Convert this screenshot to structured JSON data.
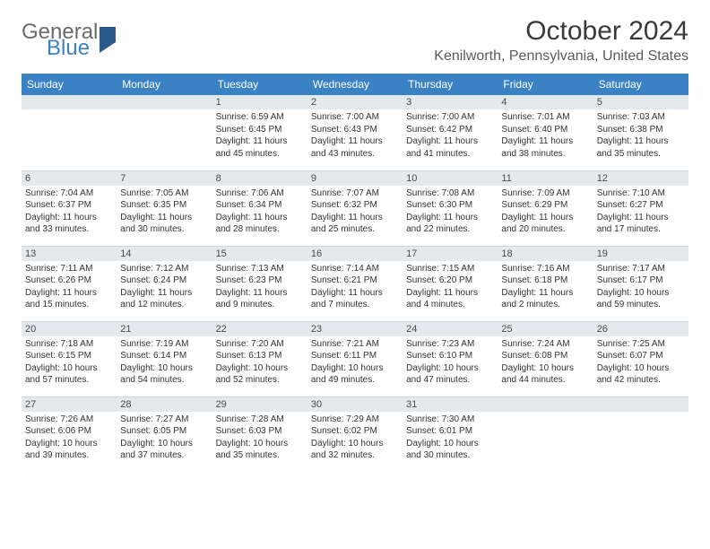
{
  "brand": {
    "word1": "General",
    "word2": "Blue"
  },
  "title": "October 2024",
  "location": "Kenilworth, Pennsylvania, United States",
  "colors": {
    "header_bg": "#3b82c4",
    "header_text": "#ffffff",
    "daynum_bg": "#e4e9ee",
    "border": "#cfd6dd",
    "text": "#333333",
    "brand_gray": "#6b6b6b",
    "brand_blue": "#3b82c4"
  },
  "fonts": {
    "title_size_pt": 30,
    "location_size_pt": 16,
    "header_size_pt": 12,
    "daynum_size_pt": 11,
    "body_size_pt": 10
  },
  "dayHeaders": [
    "Sunday",
    "Monday",
    "Tuesday",
    "Wednesday",
    "Thursday",
    "Friday",
    "Saturday"
  ],
  "weeks": [
    [
      null,
      null,
      {
        "n": "1",
        "sunrise": "6:59 AM",
        "sunset": "6:45 PM",
        "daylight": "11 hours and 45 minutes."
      },
      {
        "n": "2",
        "sunrise": "7:00 AM",
        "sunset": "6:43 PM",
        "daylight": "11 hours and 43 minutes."
      },
      {
        "n": "3",
        "sunrise": "7:00 AM",
        "sunset": "6:42 PM",
        "daylight": "11 hours and 41 minutes."
      },
      {
        "n": "4",
        "sunrise": "7:01 AM",
        "sunset": "6:40 PM",
        "daylight": "11 hours and 38 minutes."
      },
      {
        "n": "5",
        "sunrise": "7:03 AM",
        "sunset": "6:38 PM",
        "daylight": "11 hours and 35 minutes."
      }
    ],
    [
      {
        "n": "6",
        "sunrise": "7:04 AM",
        "sunset": "6:37 PM",
        "daylight": "11 hours and 33 minutes."
      },
      {
        "n": "7",
        "sunrise": "7:05 AM",
        "sunset": "6:35 PM",
        "daylight": "11 hours and 30 minutes."
      },
      {
        "n": "8",
        "sunrise": "7:06 AM",
        "sunset": "6:34 PM",
        "daylight": "11 hours and 28 minutes."
      },
      {
        "n": "9",
        "sunrise": "7:07 AM",
        "sunset": "6:32 PM",
        "daylight": "11 hours and 25 minutes."
      },
      {
        "n": "10",
        "sunrise": "7:08 AM",
        "sunset": "6:30 PM",
        "daylight": "11 hours and 22 minutes."
      },
      {
        "n": "11",
        "sunrise": "7:09 AM",
        "sunset": "6:29 PM",
        "daylight": "11 hours and 20 minutes."
      },
      {
        "n": "12",
        "sunrise": "7:10 AM",
        "sunset": "6:27 PM",
        "daylight": "11 hours and 17 minutes."
      }
    ],
    [
      {
        "n": "13",
        "sunrise": "7:11 AM",
        "sunset": "6:26 PM",
        "daylight": "11 hours and 15 minutes."
      },
      {
        "n": "14",
        "sunrise": "7:12 AM",
        "sunset": "6:24 PM",
        "daylight": "11 hours and 12 minutes."
      },
      {
        "n": "15",
        "sunrise": "7:13 AM",
        "sunset": "6:23 PM",
        "daylight": "11 hours and 9 minutes."
      },
      {
        "n": "16",
        "sunrise": "7:14 AM",
        "sunset": "6:21 PM",
        "daylight": "11 hours and 7 minutes."
      },
      {
        "n": "17",
        "sunrise": "7:15 AM",
        "sunset": "6:20 PM",
        "daylight": "11 hours and 4 minutes."
      },
      {
        "n": "18",
        "sunrise": "7:16 AM",
        "sunset": "6:18 PM",
        "daylight": "11 hours and 2 minutes."
      },
      {
        "n": "19",
        "sunrise": "7:17 AM",
        "sunset": "6:17 PM",
        "daylight": "10 hours and 59 minutes."
      }
    ],
    [
      {
        "n": "20",
        "sunrise": "7:18 AM",
        "sunset": "6:15 PM",
        "daylight": "10 hours and 57 minutes."
      },
      {
        "n": "21",
        "sunrise": "7:19 AM",
        "sunset": "6:14 PM",
        "daylight": "10 hours and 54 minutes."
      },
      {
        "n": "22",
        "sunrise": "7:20 AM",
        "sunset": "6:13 PM",
        "daylight": "10 hours and 52 minutes."
      },
      {
        "n": "23",
        "sunrise": "7:21 AM",
        "sunset": "6:11 PM",
        "daylight": "10 hours and 49 minutes."
      },
      {
        "n": "24",
        "sunrise": "7:23 AM",
        "sunset": "6:10 PM",
        "daylight": "10 hours and 47 minutes."
      },
      {
        "n": "25",
        "sunrise": "7:24 AM",
        "sunset": "6:08 PM",
        "daylight": "10 hours and 44 minutes."
      },
      {
        "n": "26",
        "sunrise": "7:25 AM",
        "sunset": "6:07 PM",
        "daylight": "10 hours and 42 minutes."
      }
    ],
    [
      {
        "n": "27",
        "sunrise": "7:26 AM",
        "sunset": "6:06 PM",
        "daylight": "10 hours and 39 minutes."
      },
      {
        "n": "28",
        "sunrise": "7:27 AM",
        "sunset": "6:05 PM",
        "daylight": "10 hours and 37 minutes."
      },
      {
        "n": "29",
        "sunrise": "7:28 AM",
        "sunset": "6:03 PM",
        "daylight": "10 hours and 35 minutes."
      },
      {
        "n": "30",
        "sunrise": "7:29 AM",
        "sunset": "6:02 PM",
        "daylight": "10 hours and 32 minutes."
      },
      {
        "n": "31",
        "sunrise": "7:30 AM",
        "sunset": "6:01 PM",
        "daylight": "10 hours and 30 minutes."
      },
      null,
      null
    ]
  ],
  "labels": {
    "sunrise": "Sunrise:",
    "sunset": "Sunset:",
    "daylight": "Daylight:"
  }
}
